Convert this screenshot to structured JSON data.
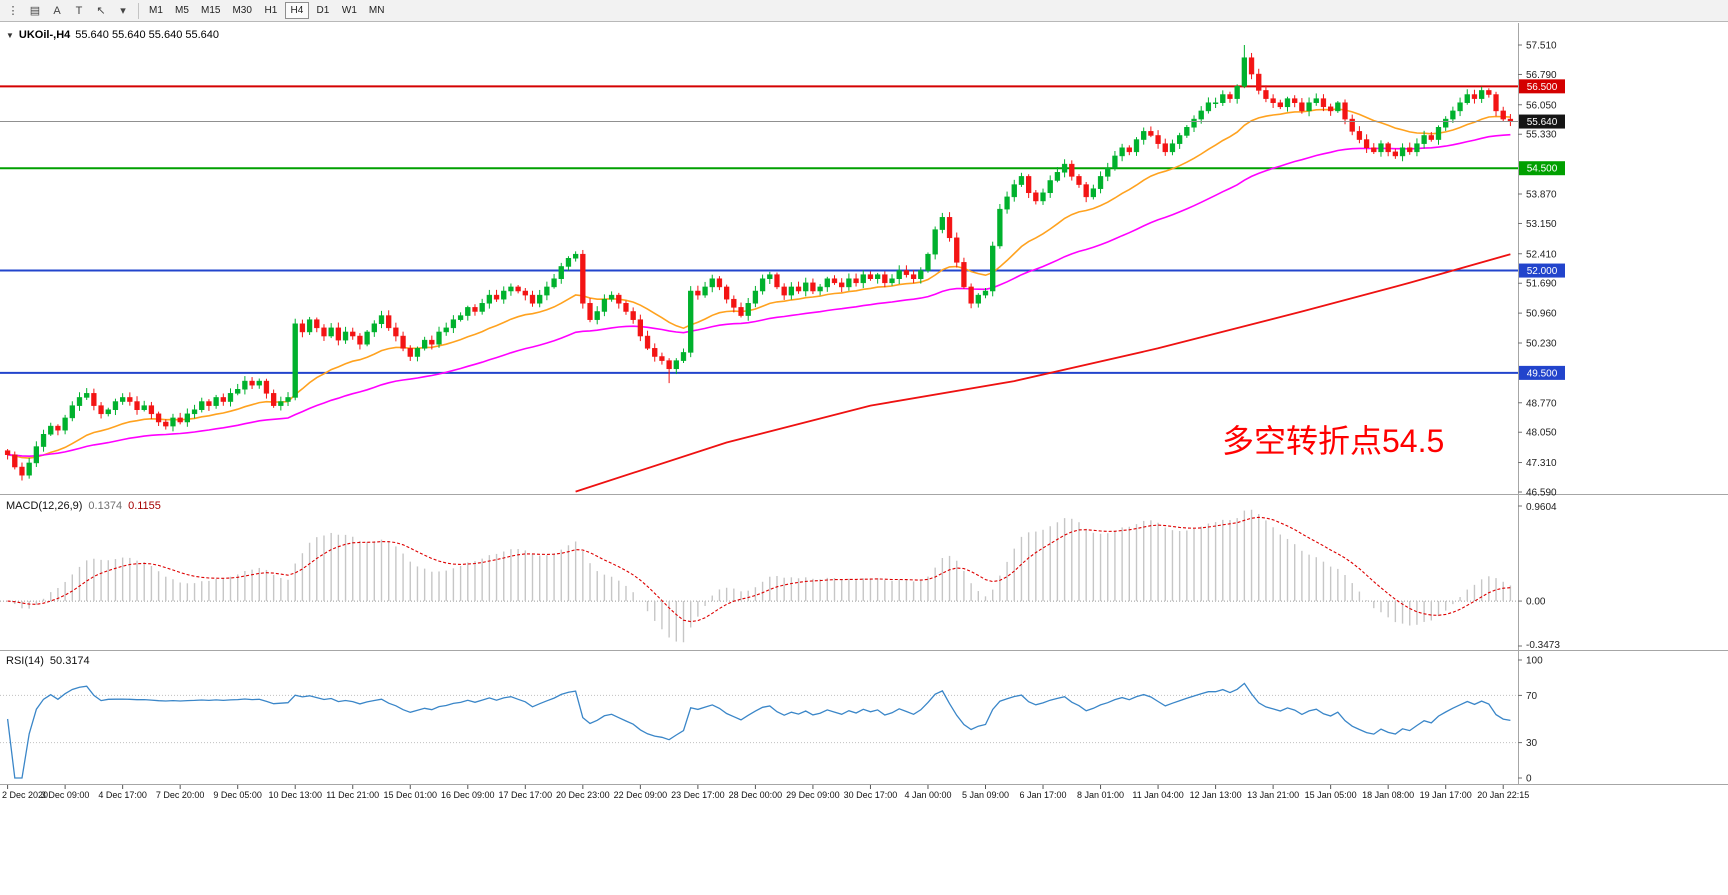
{
  "toolbar": {
    "icons": [
      {
        "name": "toolbar-grip-icon",
        "glyph": "⋮"
      },
      {
        "name": "chart-window-icon",
        "glyph": "▤"
      },
      {
        "name": "text-annotation-icon",
        "glyph": "A"
      },
      {
        "name": "text-box-icon",
        "glyph": "T"
      },
      {
        "name": "cursor-select-icon",
        "glyph": "↖"
      },
      {
        "name": "dropdown-caret-icon",
        "glyph": "▾"
      }
    ],
    "timeframes": [
      {
        "label": "M1",
        "active": false
      },
      {
        "label": "M5",
        "active": false
      },
      {
        "label": "M15",
        "active": false
      },
      {
        "label": "M30",
        "active": false
      },
      {
        "label": "H1",
        "active": false
      },
      {
        "label": "H4",
        "active": true
      },
      {
        "label": "D1",
        "active": false
      },
      {
        "label": "W1",
        "active": false
      },
      {
        "label": "MN",
        "active": false
      }
    ]
  },
  "chart": {
    "menu_triangle": "▼",
    "title_symbol": "UKOil-,H4",
    "title_ohlc": "55.640 55.640 55.640 55.640",
    "annotation": "多空转折点54.5"
  },
  "price_axis": {
    "labels": [
      "57.510",
      "56.790",
      "56.050",
      "55.330",
      "53.870",
      "53.150",
      "52.410",
      "51.690",
      "50.960",
      "50.230",
      "48.770",
      "48.050",
      "47.310",
      "46.590"
    ],
    "badges": [
      {
        "value": "56.500",
        "label": "56.500",
        "color": "#d40000"
      },
      {
        "value": "55.640",
        "label": "55.640",
        "color": "#151515"
      },
      {
        "value": "54.500",
        "label": "54.500",
        "color": "#00a000"
      },
      {
        "value": "52.000",
        "label": "52.000",
        "color": "#2244cc"
      },
      {
        "value": "49.500",
        "label": "49.500",
        "color": "#2244cc"
      }
    ]
  },
  "time_axis": {
    "labels": [
      "2 Dec 2020",
      "3 Dec 09:00",
      "4 Dec 17:00",
      "7 Dec 20:00",
      "9 Dec 05:00",
      "10 Dec 13:00",
      "11 Dec 21:00",
      "15 Dec 01:00",
      "16 Dec 09:00",
      "17 Dec 17:00",
      "20 Dec 23:00",
      "22 Dec 09:00",
      "23 Dec 17:00",
      "28 Dec 00:00",
      "29 Dec 09:00",
      "30 Dec 17:00",
      "4 Jan 00:00",
      "5 Jan 09:00",
      "6 Jan 17:00",
      "8 Jan 01:00",
      "11 Jan 04:00",
      "12 Jan 13:00",
      "13 Jan 21:00",
      "15 Jan 05:00",
      "18 Jan 08:00",
      "19 Jan 17:00",
      "20 Jan 22:15"
    ]
  },
  "macd": {
    "title": "MACD(12,26,9)",
    "value_main": "0.1374",
    "value_signal": "0.1155",
    "axis": [
      "0.9604",
      "0.00",
      "-0.3473"
    ]
  },
  "rsi": {
    "title": "RSI(14)",
    "value": "50.3174",
    "axis": [
      "100",
      "70",
      "30",
      "0"
    ],
    "levels": [
      70,
      30
    ]
  },
  "colors": {
    "candle_up": "#00b12d",
    "candle_down": "#f31414",
    "ma_orange": "#ffa21f",
    "ma_magenta": "#ff00ff",
    "ma_red": "#ee1111",
    "macd_hist": "#c6c6c6",
    "macd_signal": "#dd0000",
    "rsi_line": "#3a86c8",
    "annotation": "#ff0000",
    "current_price_line": "#909090"
  },
  "chart_data": {
    "type": "candlestick",
    "symbol": "UKOil-",
    "period": "H4",
    "price_range": {
      "min": 46.59,
      "max": 57.51
    },
    "first_open": 47.6,
    "closes": [
      47.5,
      47.2,
      47.0,
      47.3,
      47.7,
      48.0,
      48.2,
      48.1,
      48.4,
      48.7,
      48.9,
      49.0,
      48.7,
      48.5,
      48.6,
      48.8,
      48.9,
      48.8,
      48.6,
      48.7,
      48.5,
      48.3,
      48.2,
      48.4,
      48.3,
      48.5,
      48.6,
      48.8,
      48.7,
      48.9,
      48.8,
      49.0,
      49.1,
      49.3,
      49.2,
      49.3,
      49.0,
      48.7,
      48.8,
      48.9,
      50.7,
      50.5,
      50.8,
      50.6,
      50.4,
      50.6,
      50.3,
      50.5,
      50.4,
      50.2,
      50.5,
      50.7,
      50.9,
      50.6,
      50.4,
      50.1,
      49.9,
      50.1,
      50.3,
      50.2,
      50.5,
      50.6,
      50.8,
      50.9,
      51.1,
      51.0,
      51.2,
      51.4,
      51.3,
      51.5,
      51.6,
      51.5,
      51.4,
      51.2,
      51.4,
      51.6,
      51.8,
      52.1,
      52.3,
      52.4,
      51.2,
      50.8,
      51.0,
      51.3,
      51.4,
      51.2,
      51.0,
      50.8,
      50.4,
      50.1,
      49.9,
      49.8,
      49.6,
      49.8,
      50.0,
      51.5,
      51.4,
      51.6,
      51.8,
      51.6,
      51.3,
      51.1,
      50.9,
      51.2,
      51.5,
      51.8,
      51.9,
      51.6,
      51.4,
      51.6,
      51.5,
      51.7,
      51.5,
      51.6,
      51.8,
      51.7,
      51.6,
      51.8,
      51.7,
      51.9,
      51.8,
      51.9,
      51.7,
      51.8,
      52.0,
      51.9,
      51.8,
      52.0,
      52.4,
      53.0,
      53.3,
      52.8,
      52.2,
      51.6,
      51.2,
      51.4,
      51.5,
      52.6,
      53.5,
      53.8,
      54.1,
      54.3,
      53.9,
      53.7,
      53.9,
      54.2,
      54.4,
      54.6,
      54.3,
      54.1,
      53.8,
      54.0,
      54.3,
      54.5,
      54.8,
      55.0,
      54.9,
      55.2,
      55.4,
      55.3,
      55.1,
      54.9,
      55.1,
      55.3,
      55.5,
      55.7,
      55.9,
      56.1,
      56.1,
      56.3,
      56.2,
      56.5,
      57.2,
      56.8,
      56.4,
      56.2,
      56.1,
      56.0,
      56.2,
      56.1,
      55.9,
      56.1,
      56.2,
      56.0,
      55.9,
      56.1,
      55.7,
      55.4,
      55.2,
      55.0,
      54.9,
      55.1,
      54.9,
      54.8,
      55.0,
      54.9,
      55.1,
      55.3,
      55.2,
      55.5,
      55.7,
      55.9,
      56.1,
      56.3,
      56.2,
      56.4,
      56.3,
      55.9,
      55.7,
      55.64
    ],
    "wick_overrides": {
      "92": {
        "low": 49.25
      },
      "172": {
        "high": 57.51
      }
    },
    "level_lines": [
      {
        "value": 56.5,
        "color": "#d40000",
        "width": 2
      },
      {
        "value": 54.5,
        "color": "#00a000",
        "width": 2
      },
      {
        "value": 52.0,
        "color": "#2244cc",
        "width": 2
      },
      {
        "value": 49.5,
        "color": "#2244cc",
        "width": 2
      }
    ],
    "current_price": 55.64,
    "ma_orange_period": 21,
    "ma_magenta_period": 55,
    "ma_red_points": [
      [
        79,
        46.6
      ],
      [
        100,
        47.8
      ],
      [
        120,
        48.7
      ],
      [
        140,
        49.3
      ],
      [
        160,
        50.1
      ],
      [
        180,
        51.0
      ],
      [
        195,
        51.7
      ],
      [
        209,
        52.4
      ]
    ],
    "macd_params": [
      12,
      26,
      9
    ],
    "rsi_period": 14
  }
}
